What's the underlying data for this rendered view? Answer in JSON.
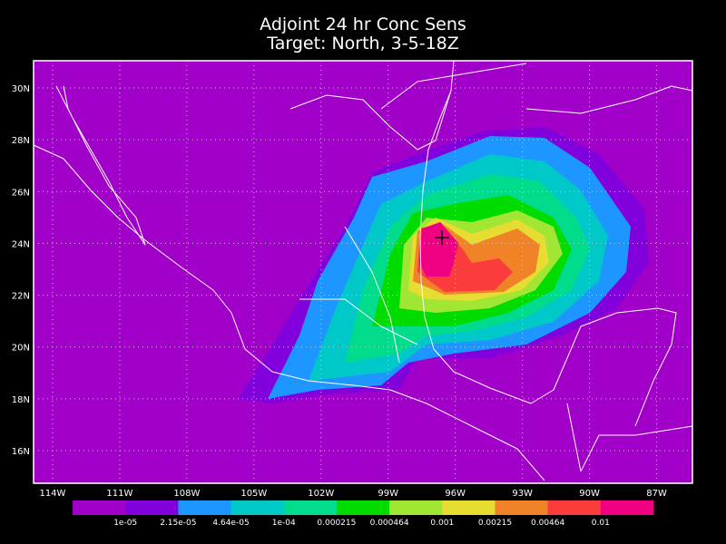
{
  "title": "Adjoint 24 hr Conc Sens",
  "subtitle": "Target: North, 3-5-18Z",
  "map": {
    "lon_range": [
      -114.85,
      -85.4
    ],
    "lat_range": [
      14.74,
      31.05
    ],
    "grid": true,
    "lon_ticks": [
      {
        "value": -114,
        "label": "114W"
      },
      {
        "value": -111,
        "label": "111W"
      },
      {
        "value": -108,
        "label": "108W"
      },
      {
        "value": -105,
        "label": "105W"
      },
      {
        "value": -102,
        "label": "102W"
      },
      {
        "value": -99,
        "label": "99W"
      },
      {
        "value": -96,
        "label": "96W"
      },
      {
        "value": -93,
        "label": "93W"
      },
      {
        "value": -90,
        "label": "90W"
      },
      {
        "value": -87,
        "label": "87W"
      }
    ],
    "lat_ticks": [
      {
        "value": 30,
        "label": "30N"
      },
      {
        "value": 28,
        "label": "28N"
      },
      {
        "value": 26,
        "label": "26N"
      },
      {
        "value": 24,
        "label": "24N"
      },
      {
        "value": 22,
        "label": "22N"
      },
      {
        "value": 20,
        "label": "20N"
      },
      {
        "value": 18,
        "label": "18N"
      },
      {
        "value": 16,
        "label": "16N"
      }
    ]
  },
  "colorbar": {
    "colors": [
      "#a000c8",
      "#8200dc",
      "#1e96ff",
      "#00c8c8",
      "#00dc8c",
      "#00dc00",
      "#a0e632",
      "#e6dc32",
      "#f08228",
      "#fa3c3c",
      "#f00082"
    ],
    "labels": [
      "1e-05",
      "2.15e-05",
      "4.64e-05",
      "1e-04",
      "0.000215",
      "0.000464",
      "0.001",
      "0.00215",
      "0.00464",
      "0.01"
    ]
  }
}
